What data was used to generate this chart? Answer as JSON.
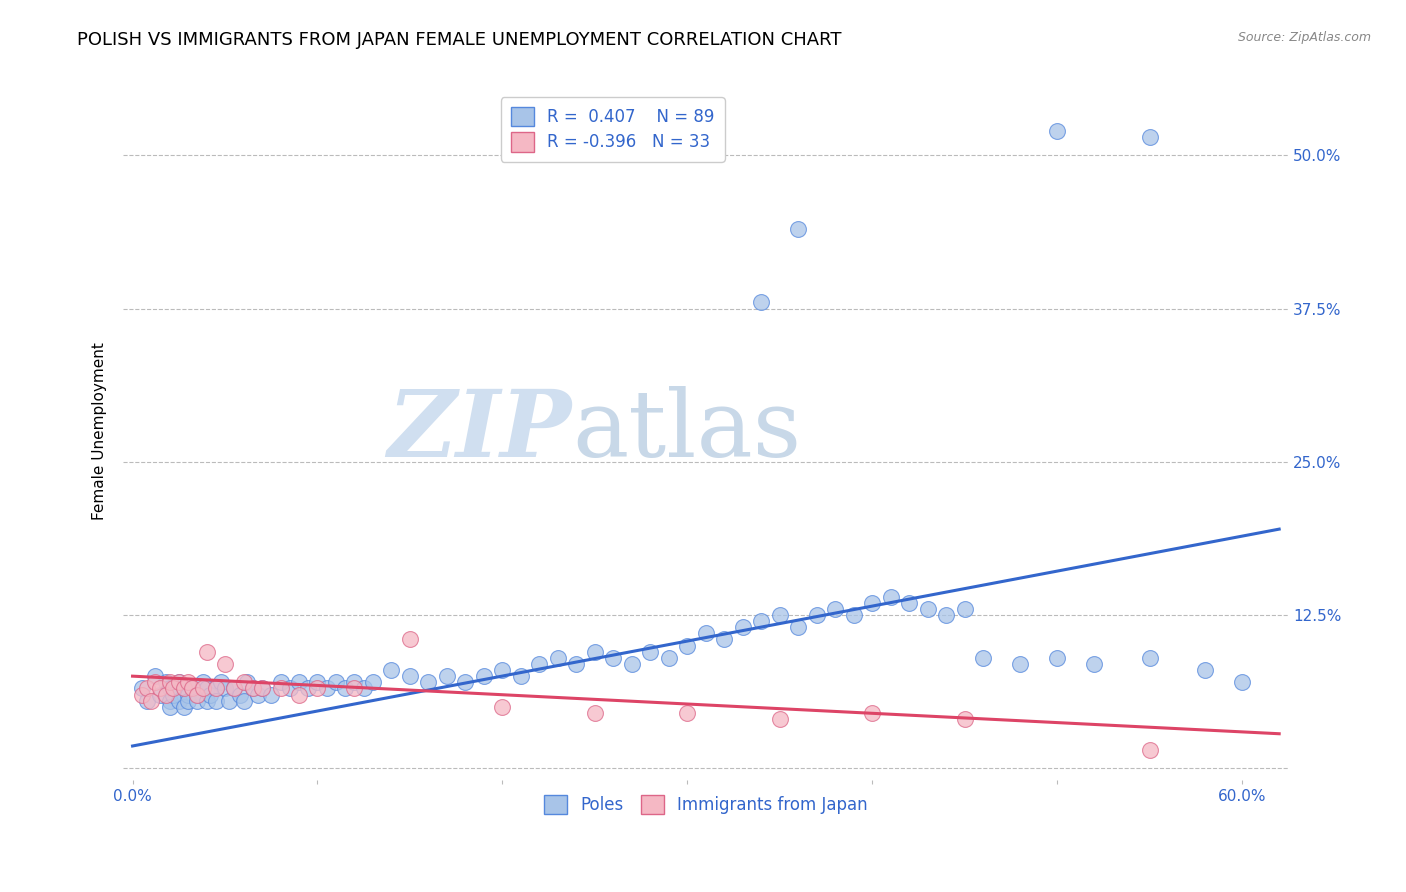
{
  "title": "POLISH VS IMMIGRANTS FROM JAPAN FEMALE UNEMPLOYMENT CORRELATION CHART",
  "source": "Source: ZipAtlas.com",
  "ylabel": "Female Unemployment",
  "x_tick_labels": [
    "0.0%",
    "",
    "",
    "",
    "",
    "",
    "60.0%"
  ],
  "x_tick_vals": [
    0.0,
    0.1,
    0.2,
    0.3,
    0.4,
    0.5,
    0.6
  ],
  "y_tick_labels": [
    "",
    "12.5%",
    "25.0%",
    "37.5%",
    "50.0%"
  ],
  "y_tick_vals": [
    0.0,
    0.125,
    0.25,
    0.375,
    0.5
  ],
  "xlim": [
    -0.005,
    0.625
  ],
  "ylim": [
    -0.01,
    0.56
  ],
  "blue_R": "0.407",
  "blue_N": "89",
  "pink_R": "-0.396",
  "pink_N": "33",
  "legend_entries": [
    "Poles",
    "Immigrants from Japan"
  ],
  "blue_color": "#a8c4e8",
  "pink_color": "#f5b8c4",
  "blue_edge_color": "#5588dd",
  "pink_edge_color": "#dd6688",
  "blue_line_color": "#3366cc",
  "pink_line_color": "#dd4466",
  "watermark_zip": "ZIP",
  "watermark_atlas": "atlas",
  "blue_scatter_x": [
    0.005,
    0.008,
    0.012,
    0.015,
    0.018,
    0.02,
    0.02,
    0.02,
    0.022,
    0.025,
    0.025,
    0.028,
    0.028,
    0.03,
    0.03,
    0.032,
    0.035,
    0.035,
    0.038,
    0.04,
    0.04,
    0.042,
    0.045,
    0.045,
    0.048,
    0.05,
    0.052,
    0.055,
    0.058,
    0.06,
    0.062,
    0.065,
    0.068,
    0.07,
    0.075,
    0.08,
    0.085,
    0.09,
    0.095,
    0.1,
    0.105,
    0.11,
    0.115,
    0.12,
    0.125,
    0.13,
    0.14,
    0.15,
    0.16,
    0.17,
    0.18,
    0.19,
    0.2,
    0.21,
    0.22,
    0.23,
    0.24,
    0.25,
    0.26,
    0.27,
    0.28,
    0.29,
    0.3,
    0.31,
    0.32,
    0.33,
    0.34,
    0.35,
    0.36,
    0.37,
    0.38,
    0.39,
    0.4,
    0.41,
    0.42,
    0.43,
    0.44,
    0.45,
    0.46,
    0.48,
    0.5,
    0.52,
    0.55,
    0.58,
    0.6,
    0.34,
    0.36,
    0.5,
    0.55
  ],
  "blue_scatter_y": [
    0.065,
    0.055,
    0.075,
    0.06,
    0.07,
    0.055,
    0.065,
    0.05,
    0.06,
    0.07,
    0.055,
    0.065,
    0.05,
    0.06,
    0.055,
    0.065,
    0.06,
    0.055,
    0.07,
    0.065,
    0.055,
    0.06,
    0.065,
    0.055,
    0.07,
    0.065,
    0.055,
    0.065,
    0.06,
    0.055,
    0.07,
    0.065,
    0.06,
    0.065,
    0.06,
    0.07,
    0.065,
    0.07,
    0.065,
    0.07,
    0.065,
    0.07,
    0.065,
    0.07,
    0.065,
    0.07,
    0.08,
    0.075,
    0.07,
    0.075,
    0.07,
    0.075,
    0.08,
    0.075,
    0.085,
    0.09,
    0.085,
    0.095,
    0.09,
    0.085,
    0.095,
    0.09,
    0.1,
    0.11,
    0.105,
    0.115,
    0.12,
    0.125,
    0.115,
    0.125,
    0.13,
    0.125,
    0.135,
    0.14,
    0.135,
    0.13,
    0.125,
    0.13,
    0.09,
    0.085,
    0.09,
    0.085,
    0.09,
    0.08,
    0.07,
    0.38,
    0.44,
    0.52,
    0.515
  ],
  "pink_scatter_x": [
    0.005,
    0.008,
    0.01,
    0.012,
    0.015,
    0.018,
    0.02,
    0.022,
    0.025,
    0.028,
    0.03,
    0.032,
    0.035,
    0.038,
    0.04,
    0.045,
    0.05,
    0.055,
    0.06,
    0.065,
    0.07,
    0.08,
    0.09,
    0.1,
    0.12,
    0.15,
    0.2,
    0.25,
    0.3,
    0.35,
    0.4,
    0.45,
    0.55
  ],
  "pink_scatter_y": [
    0.06,
    0.065,
    0.055,
    0.07,
    0.065,
    0.06,
    0.07,
    0.065,
    0.07,
    0.065,
    0.07,
    0.065,
    0.06,
    0.065,
    0.095,
    0.065,
    0.085,
    0.065,
    0.07,
    0.065,
    0.065,
    0.065,
    0.06,
    0.065,
    0.065,
    0.105,
    0.05,
    0.045,
    0.045,
    0.04,
    0.045,
    0.04,
    0.015
  ],
  "blue_line_x": [
    0.0,
    0.62
  ],
  "blue_line_y_start": 0.018,
  "blue_line_y_end": 0.195,
  "pink_line_x": [
    0.0,
    0.62
  ],
  "pink_line_y_start": 0.075,
  "pink_line_y_end": 0.028,
  "grid_color": "#bbbbbb",
  "bg_color": "#ffffff",
  "label_color": "#3366cc",
  "title_fontsize": 13,
  "axis_label_fontsize": 11,
  "tick_fontsize": 11
}
